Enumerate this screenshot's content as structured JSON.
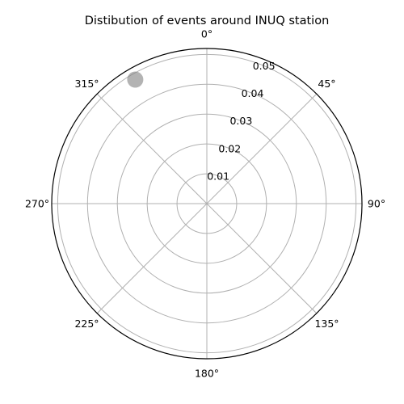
{
  "chart_data": {
    "type": "scatter",
    "projection": "polar",
    "title": "Distibution of events around INUQ station",
    "theta_direction": "clockwise",
    "theta_zero": "top",
    "theta_ticks": [
      0,
      45,
      90,
      135,
      180,
      225,
      270,
      315
    ],
    "theta_tick_labels": [
      "0°",
      "45°",
      "90°",
      "135°",
      "180°",
      "225°",
      "270°",
      "315°"
    ],
    "r_ticks": [
      0.01,
      0.02,
      0.03,
      0.04,
      0.05
    ],
    "r_tick_labels": [
      "0.01",
      "0.02",
      "0.03",
      "0.04",
      "0.05"
    ],
    "r_lim": [
      0,
      0.052
    ],
    "grid": true,
    "series": [
      {
        "points": [
          {
            "theta_deg": 330,
            "r": 0.048
          }
        ],
        "color": "#808080",
        "opacity": 0.6
      }
    ]
  }
}
